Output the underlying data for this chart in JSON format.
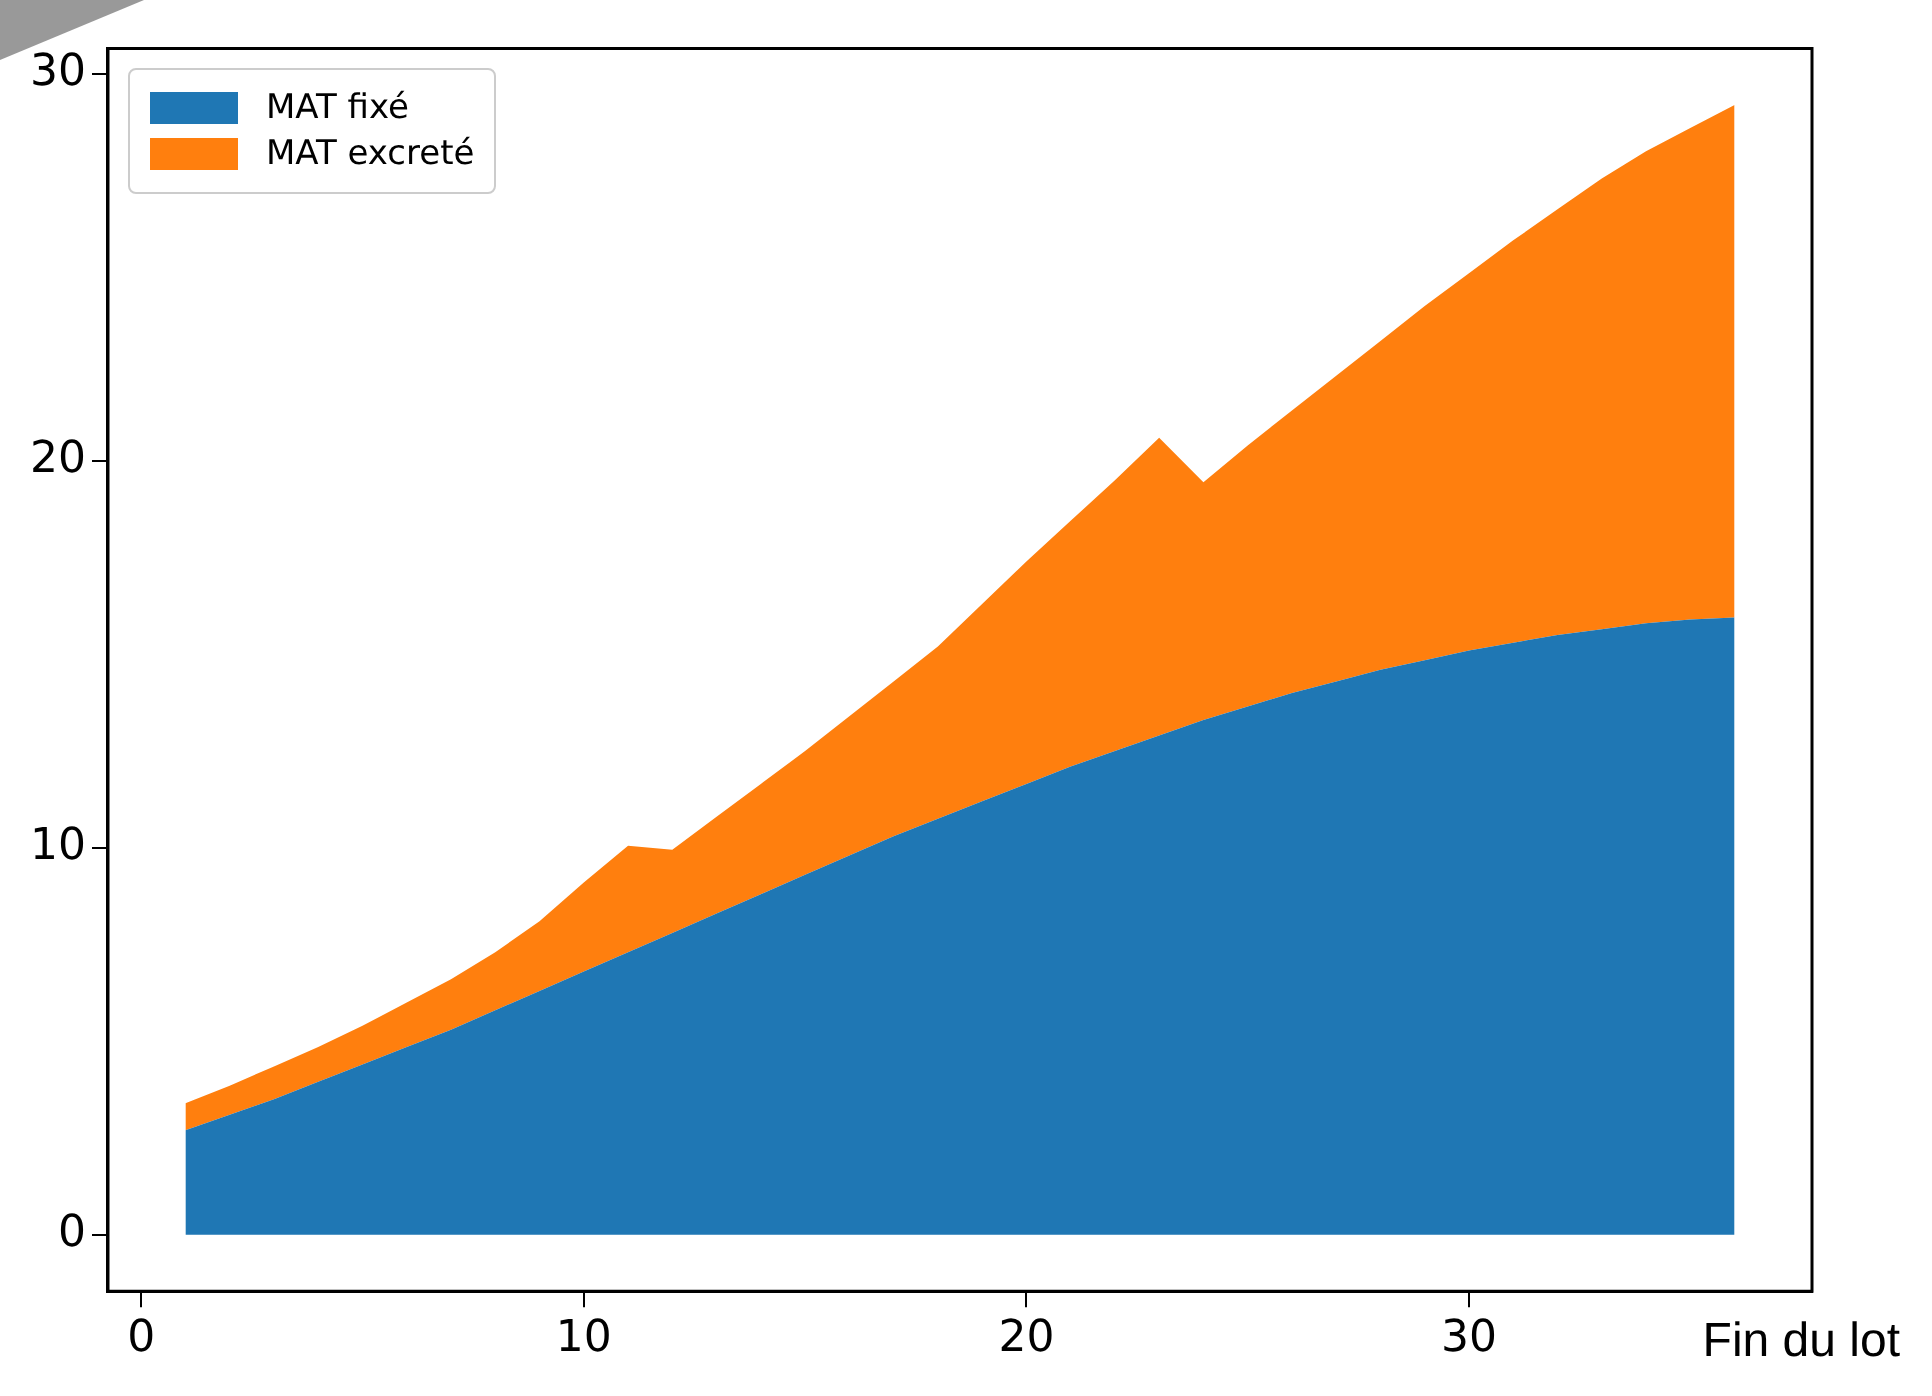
{
  "chart_data": {
    "type": "area",
    "stacked": true,
    "xlabel": "Fin du lot",
    "x": [
      1,
      2,
      3,
      4,
      5,
      6,
      7,
      8,
      9,
      10,
      11,
      12,
      13,
      14,
      15,
      16,
      17,
      18,
      19,
      20,
      21,
      22,
      23,
      24,
      25,
      26,
      27,
      28,
      29,
      30,
      31,
      32,
      33,
      34,
      35,
      36
    ],
    "series": [
      {
        "name": "MAT fixé",
        "color": "#1f77b4",
        "values": [
          2.7,
          3.1,
          3.5,
          3.95,
          4.4,
          4.85,
          5.3,
          5.8,
          6.3,
          6.8,
          7.3,
          7.8,
          8.3,
          8.8,
          9.3,
          9.8,
          10.3,
          10.75,
          11.2,
          11.65,
          12.1,
          12.5,
          12.9,
          13.3,
          13.65,
          14.0,
          14.3,
          14.6,
          14.85,
          15.1,
          15.3,
          15.5,
          15.65,
          15.8,
          15.9,
          15.95
        ]
      },
      {
        "name": "MAT excreté",
        "color": "#ff7f0e",
        "values": [
          0.7,
          0.75,
          0.85,
          0.9,
          1.0,
          1.15,
          1.3,
          1.5,
          1.8,
          2.3,
          2.75,
          2.15,
          2.5,
          2.85,
          3.2,
          3.6,
          4.0,
          4.45,
          5.1,
          5.75,
          6.35,
          7.0,
          7.7,
          6.15,
          6.75,
          7.3,
          7.9,
          8.5,
          9.15,
          9.75,
          10.4,
          11.0,
          11.65,
          12.2,
          12.7,
          13.25
        ]
      }
    ],
    "xlim": [
      -0.75,
      37.75
    ],
    "xticks": [
      0,
      10,
      20,
      30
    ],
    "ylim": [
      -1.46,
      30.66
    ],
    "yticks": [
      0,
      10,
      20,
      30
    ],
    "grid": false,
    "legend": "top left"
  }
}
